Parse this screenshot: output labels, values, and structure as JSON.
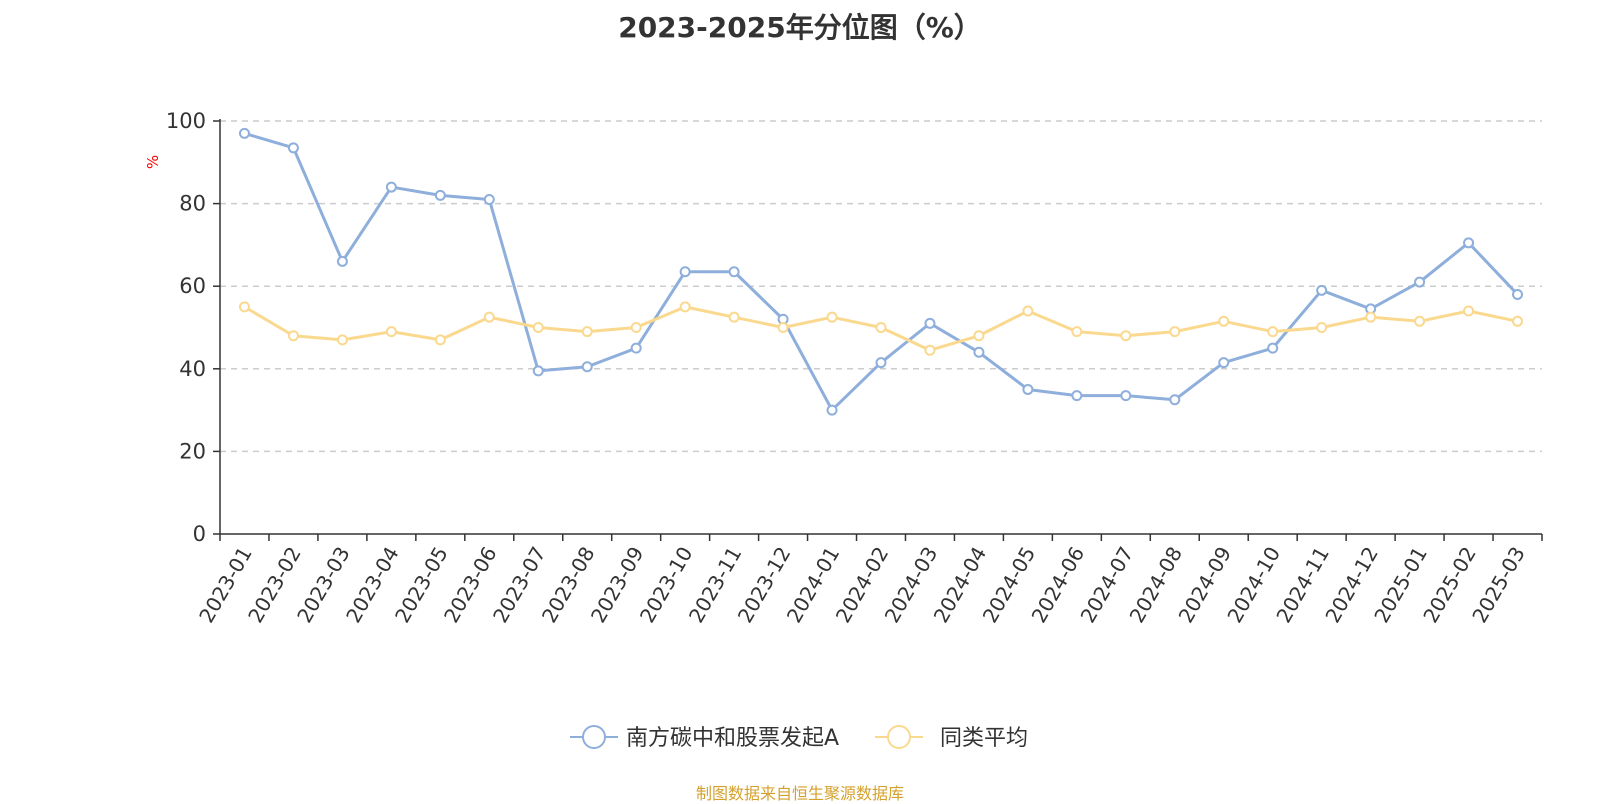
{
  "chart_data": {
    "type": "line",
    "title": "2023-2025年分位图（%）",
    "ylabel": "%",
    "ylim": [
      0,
      100
    ],
    "yticks": [
      0,
      20,
      40,
      60,
      80,
      100
    ],
    "grid": true,
    "legend_position": "bottom-center",
    "categories": [
      "2023-01",
      "2023-02",
      "2023-03",
      "2023-04",
      "2023-05",
      "2023-06",
      "2023-07",
      "2023-08",
      "2023-09",
      "2023-10",
      "2023-11",
      "2023-12",
      "2024-01",
      "2024-02",
      "2024-03",
      "2024-04",
      "2024-05",
      "2024-06",
      "2024-07",
      "2024-08",
      "2024-09",
      "2024-10",
      "2024-11",
      "2024-12",
      "2025-01",
      "2025-02",
      "2025-03"
    ],
    "series": [
      {
        "name": "南方碳中和股票发起A",
        "color": "#8eaedb",
        "values": [
          97,
          93.5,
          66,
          84,
          82,
          81,
          39.5,
          40.5,
          45,
          63.5,
          63.5,
          52,
          30,
          41.5,
          51,
          44,
          35,
          33.5,
          33.5,
          32.5,
          41.5,
          45,
          59,
          54.5,
          61,
          70.5,
          58
        ]
      },
      {
        "name": "同类平均",
        "color": "#fad98f",
        "values": [
          55,
          48,
          47,
          49,
          47,
          52.5,
          50,
          49,
          50,
          55,
          52.5,
          50,
          52.5,
          50,
          44.5,
          48,
          54,
          49,
          48,
          49,
          51.5,
          49,
          50,
          52.5,
          51.5,
          54,
          51.5
        ]
      }
    ]
  },
  "source_text": "制图数据来自恒生聚源数据库"
}
